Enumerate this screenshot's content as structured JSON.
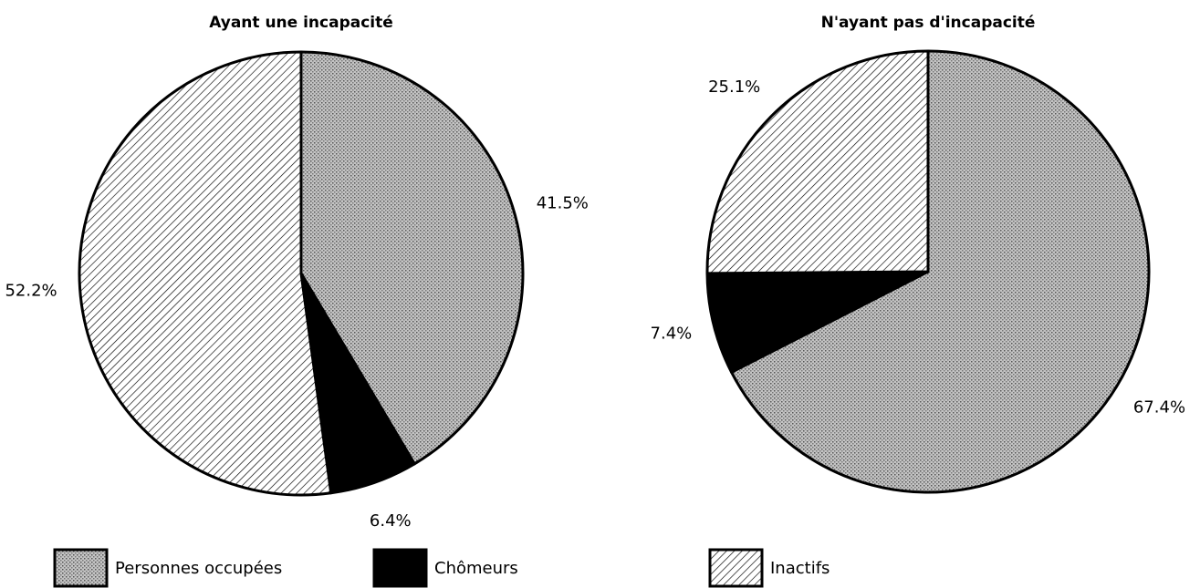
{
  "chart_data": [
    {
      "type": "pie",
      "title": "Ayant une incapacité",
      "categories": [
        "Personnes occupées",
        "Chômeurs",
        "Inactifs"
      ],
      "values": [
        41.5,
        6.4,
        52.2
      ],
      "value_labels": [
        "41.5%",
        "6.4%",
        "52.2%"
      ],
      "colors": [
        "#b3b3b3",
        "#000000",
        "#ffffff"
      ],
      "patterns": [
        "dots",
        "solid",
        "hatch"
      ]
    },
    {
      "type": "pie",
      "title": "N'ayant pas d'incapacité",
      "categories": [
        "Personnes occupées",
        "Chômeurs",
        "Inactifs"
      ],
      "values": [
        67.4,
        7.4,
        25.1
      ],
      "value_labels": [
        "67.4%",
        "7.4%",
        "25.1%"
      ],
      "colors": [
        "#b3b3b3",
        "#000000",
        "#ffffff"
      ],
      "patterns": [
        "dots",
        "solid",
        "hatch"
      ]
    }
  ]
}
